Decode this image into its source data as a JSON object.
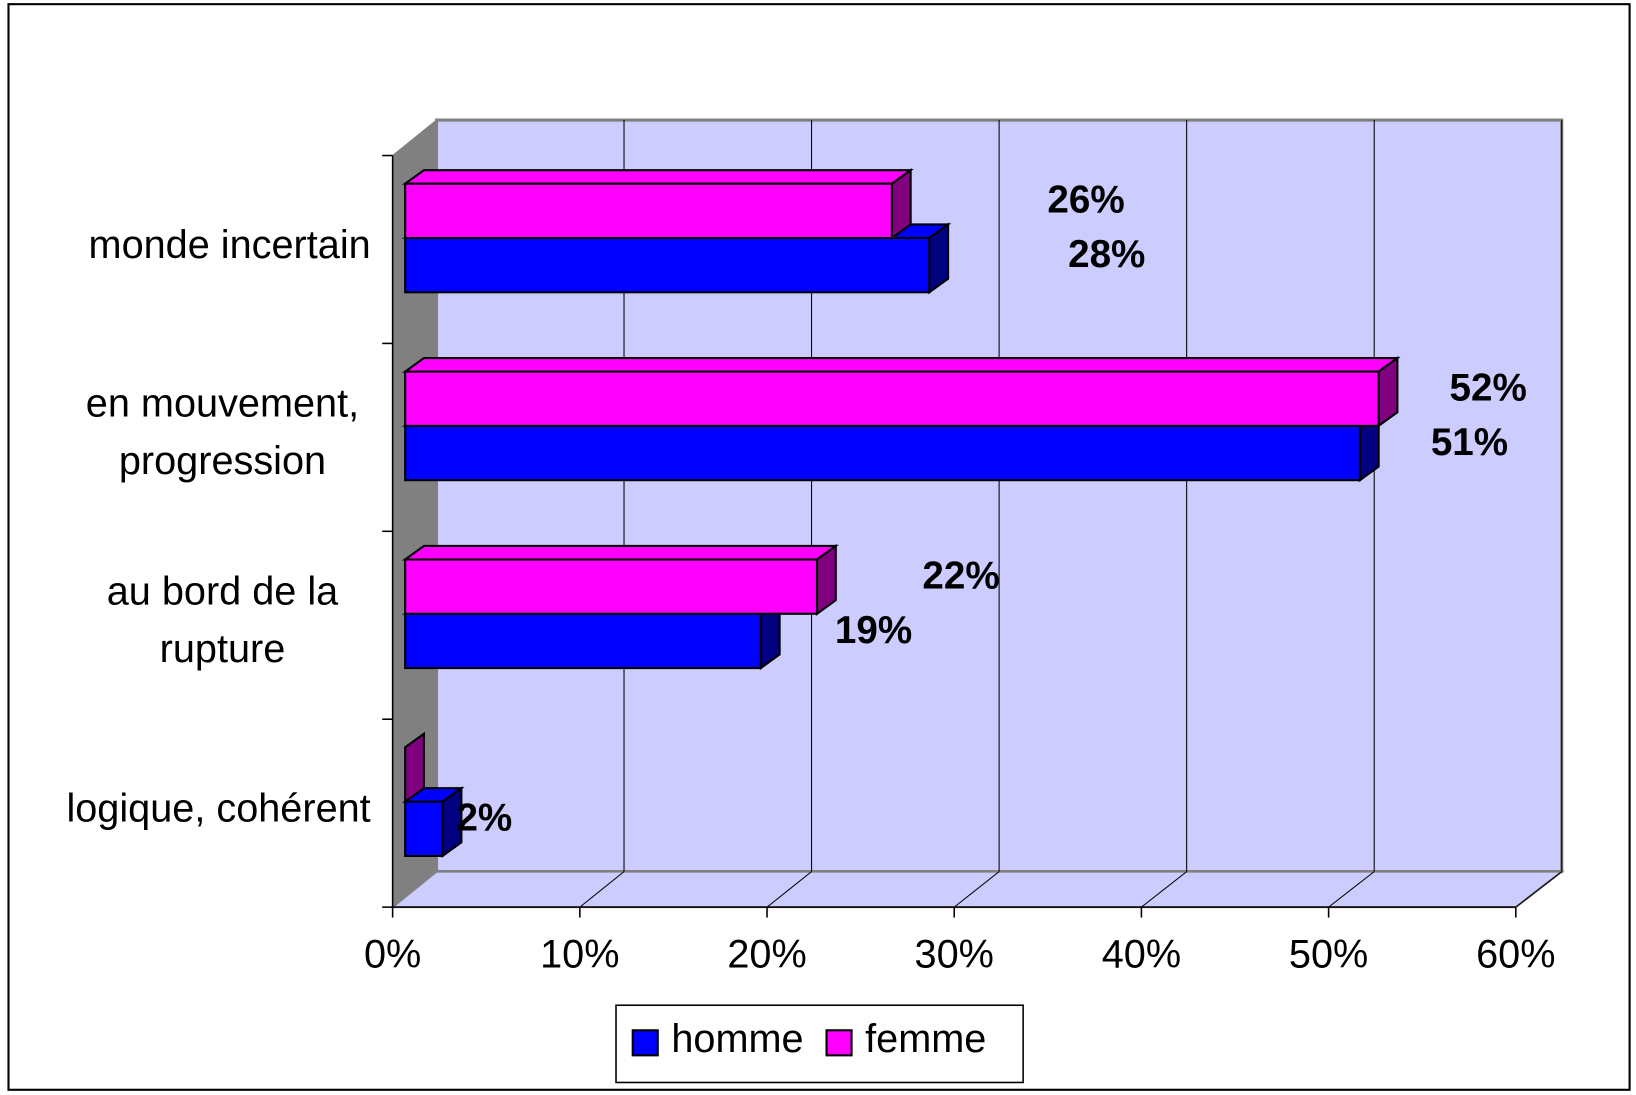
{
  "chart_data": {
    "type": "bar3d-horizontal",
    "categories": [
      "monde incertain",
      "en mouvement,\nprogression",
      "au bord de la\nrupture",
      "logique, cohérent"
    ],
    "series": [
      {
        "name": "homme",
        "color": "#0000ff",
        "values": [
          28,
          51,
          19,
          2
        ],
        "value_labels": [
          "28%",
          "51%",
          "19%",
          "2%"
        ]
      },
      {
        "name": "femme",
        "color": "#ff00ff",
        "values": [
          26,
          52,
          22,
          0
        ],
        "value_labels": [
          "26%",
          "52%",
          "22%",
          null
        ]
      }
    ],
    "xlim": [
      0,
      60
    ],
    "xticks": [
      {
        "value": 0,
        "label": "0%"
      },
      {
        "value": 10,
        "label": "10%"
      },
      {
        "value": 20,
        "label": "20%"
      },
      {
        "value": 30,
        "label": "30%"
      },
      {
        "value": 40,
        "label": "40%"
      },
      {
        "value": 50,
        "label": "50%"
      },
      {
        "value": 60,
        "label": "60%"
      }
    ],
    "grid": true,
    "legend": "bottom"
  }
}
